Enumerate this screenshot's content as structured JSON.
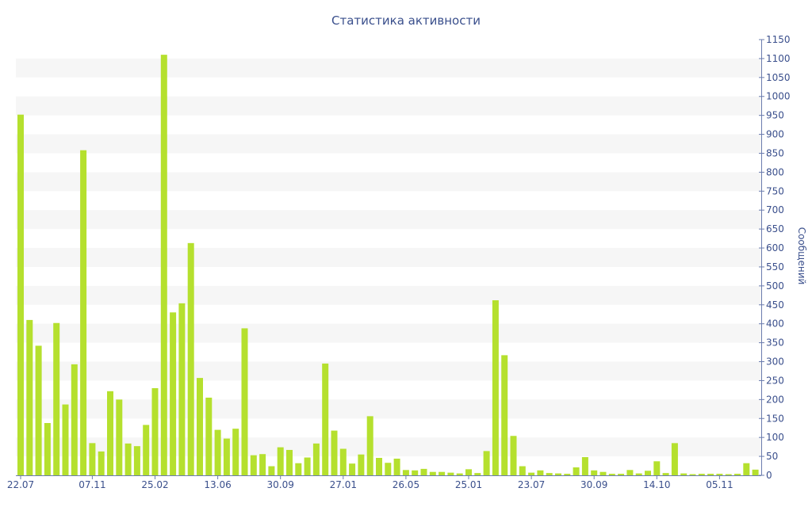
{
  "chart_data": {
    "type": "bar",
    "title": "Статистика активности",
    "xlabel": "",
    "ylabel": "Сообщений",
    "ylim": [
      0,
      1150
    ],
    "y_ticks": [
      0,
      50,
      100,
      150,
      200,
      250,
      300,
      350,
      400,
      450,
      500,
      550,
      600,
      650,
      700,
      750,
      800,
      850,
      900,
      950,
      1000,
      1050,
      1100,
      1150
    ],
    "y_axis_side": "right",
    "grid": "horizontal bands",
    "x_tick_labels": [
      {
        "label": "22.07",
        "index": 0
      },
      {
        "label": "07.11",
        "index": 8
      },
      {
        "label": "25.02",
        "index": 15
      },
      {
        "label": "13.06",
        "index": 22
      },
      {
        "label": "30.09",
        "index": 29
      },
      {
        "label": "27.01",
        "index": 36
      },
      {
        "label": "26.05",
        "index": 43
      },
      {
        "label": "25.01",
        "index": 50
      },
      {
        "label": "23.07",
        "index": 57
      },
      {
        "label": "30.09",
        "index": 64
      },
      {
        "label": "14.10",
        "index": 71
      },
      {
        "label": "05.11",
        "index": 78
      }
    ],
    "values": [
      952,
      410,
      342,
      138,
      402,
      187,
      293,
      858,
      85,
      63,
      222,
      200,
      84,
      77,
      133,
      230,
      1110,
      430,
      454,
      613,
      257,
      205,
      120,
      97,
      123,
      388,
      53,
      56,
      24,
      74,
      67,
      32,
      47,
      84,
      295,
      118,
      70,
      31,
      55,
      156,
      46,
      33,
      44,
      14,
      13,
      17,
      9,
      9,
      7,
      5,
      16,
      6,
      64,
      462,
      317,
      104,
      24,
      7,
      13,
      6,
      5,
      4,
      21,
      48,
      13,
      9,
      4,
      4,
      14,
      5,
      12,
      37,
      6,
      85,
      5,
      3,
      4,
      4,
      4,
      3,
      4,
      32,
      15
    ],
    "colors": {
      "bar": "#b5e02e",
      "band": "#f6f6f6",
      "text": "#3a4f8c",
      "axis": "#6b7cae"
    }
  }
}
